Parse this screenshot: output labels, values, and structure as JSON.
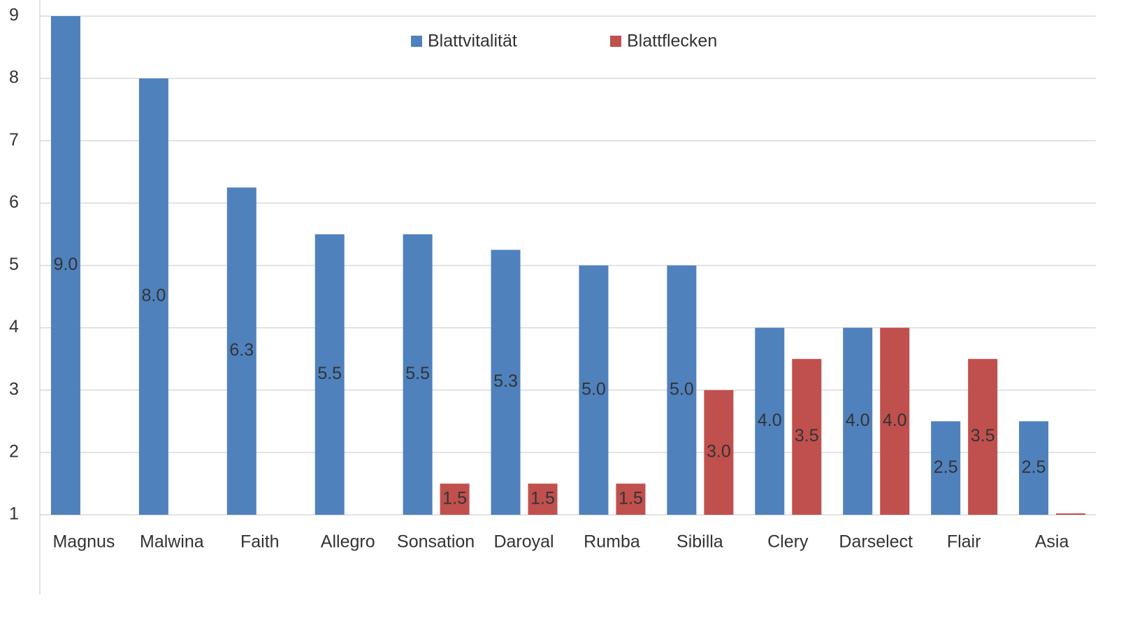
{
  "chart_data": {
    "type": "bar",
    "categories": [
      "Magnus",
      "Malwina",
      "Faith",
      "Allegro",
      "Sonsation",
      "Daroyal",
      "Rumba",
      "Sibilla",
      "Clery",
      "Darselect",
      "Flair",
      "Asia"
    ],
    "series": [
      {
        "name": "Blattvitalität",
        "color": "#4f81bd",
        "values": [
          9,
          8,
          6.25,
          5.5,
          5.5,
          5.25,
          5,
          5,
          4,
          4,
          2.5,
          2.5
        ],
        "value_labels": [
          "9.0",
          "8.0",
          "6.3",
          "5.5",
          "5.5",
          "5.3",
          "5.0",
          "5.0",
          "4.0",
          "4.0",
          "2.5",
          "2.5"
        ]
      },
      {
        "name": "Blattflecken",
        "color": "#c0504d",
        "values": [
          null,
          null,
          null,
          null,
          1.5,
          1.5,
          1.5,
          3,
          3.5,
          4,
          3.5,
          1
        ],
        "value_labels": [
          null,
          null,
          null,
          null,
          "1.5",
          "1.5",
          "1.5",
          "3.0",
          "3.5",
          "4.0",
          "3.5",
          null
        ]
      }
    ],
    "ylim": [
      1,
      9
    ],
    "yticks": [
      1,
      2,
      3,
      4,
      5,
      6,
      7,
      8,
      9
    ],
    "grid": true,
    "legend": "top"
  }
}
